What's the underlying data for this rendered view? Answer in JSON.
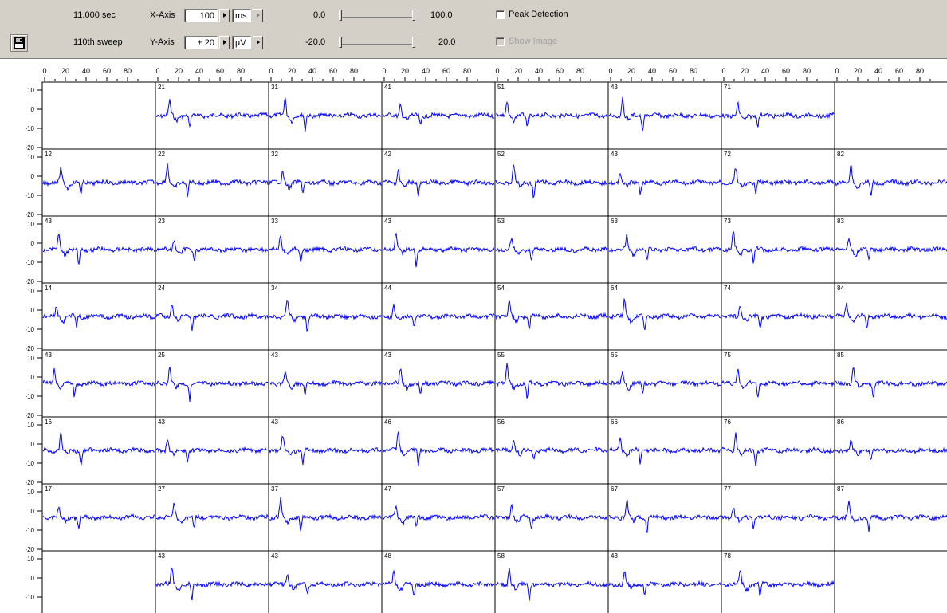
{
  "toolbar": {
    "time": "11.000 sec",
    "sweep": "110th sweep",
    "x_axis_label": "X-Axis",
    "y_axis_label": "Y-Axis",
    "x_scale": "100",
    "y_scale": "± 20",
    "x_unit": "ms",
    "y_unit": "µV",
    "x_range_min": "0.0",
    "x_range_max": "100.0",
    "y_range_min": "-20.0",
    "y_range_max": "20.0",
    "peak_detection_label": "Peak Detection",
    "show_image_label": "Show Image",
    "peak_detection_checked": false,
    "show_image_enabled": false
  },
  "grid": {
    "x_ticks": [
      "0",
      "20",
      "40",
      "60",
      "80"
    ],
    "y_ticks": [
      "10",
      "0",
      "-10",
      "-20"
    ],
    "trace_color": "#0000ff",
    "cells": [
      [
        "",
        "21",
        "31",
        "41",
        "51",
        "43",
        "71",
        ""
      ],
      [
        "12",
        "22",
        "32",
        "42",
        "52",
        "43",
        "72",
        "82"
      ],
      [
        "43",
        "23",
        "33",
        "43",
        "53",
        "63",
        "73",
        "83"
      ],
      [
        "14",
        "24",
        "34",
        "44",
        "54",
        "64",
        "74",
        "84"
      ],
      [
        "43",
        "25",
        "43",
        "43",
        "55",
        "65",
        "75",
        "85"
      ],
      [
        "16",
        "43",
        "43",
        "46",
        "56",
        "66",
        "76",
        "86"
      ],
      [
        "17",
        "27",
        "37",
        "47",
        "57",
        "67",
        "77",
        "87"
      ],
      [
        "",
        "43",
        "43",
        "48",
        "58",
        "43",
        "78",
        ""
      ]
    ]
  }
}
